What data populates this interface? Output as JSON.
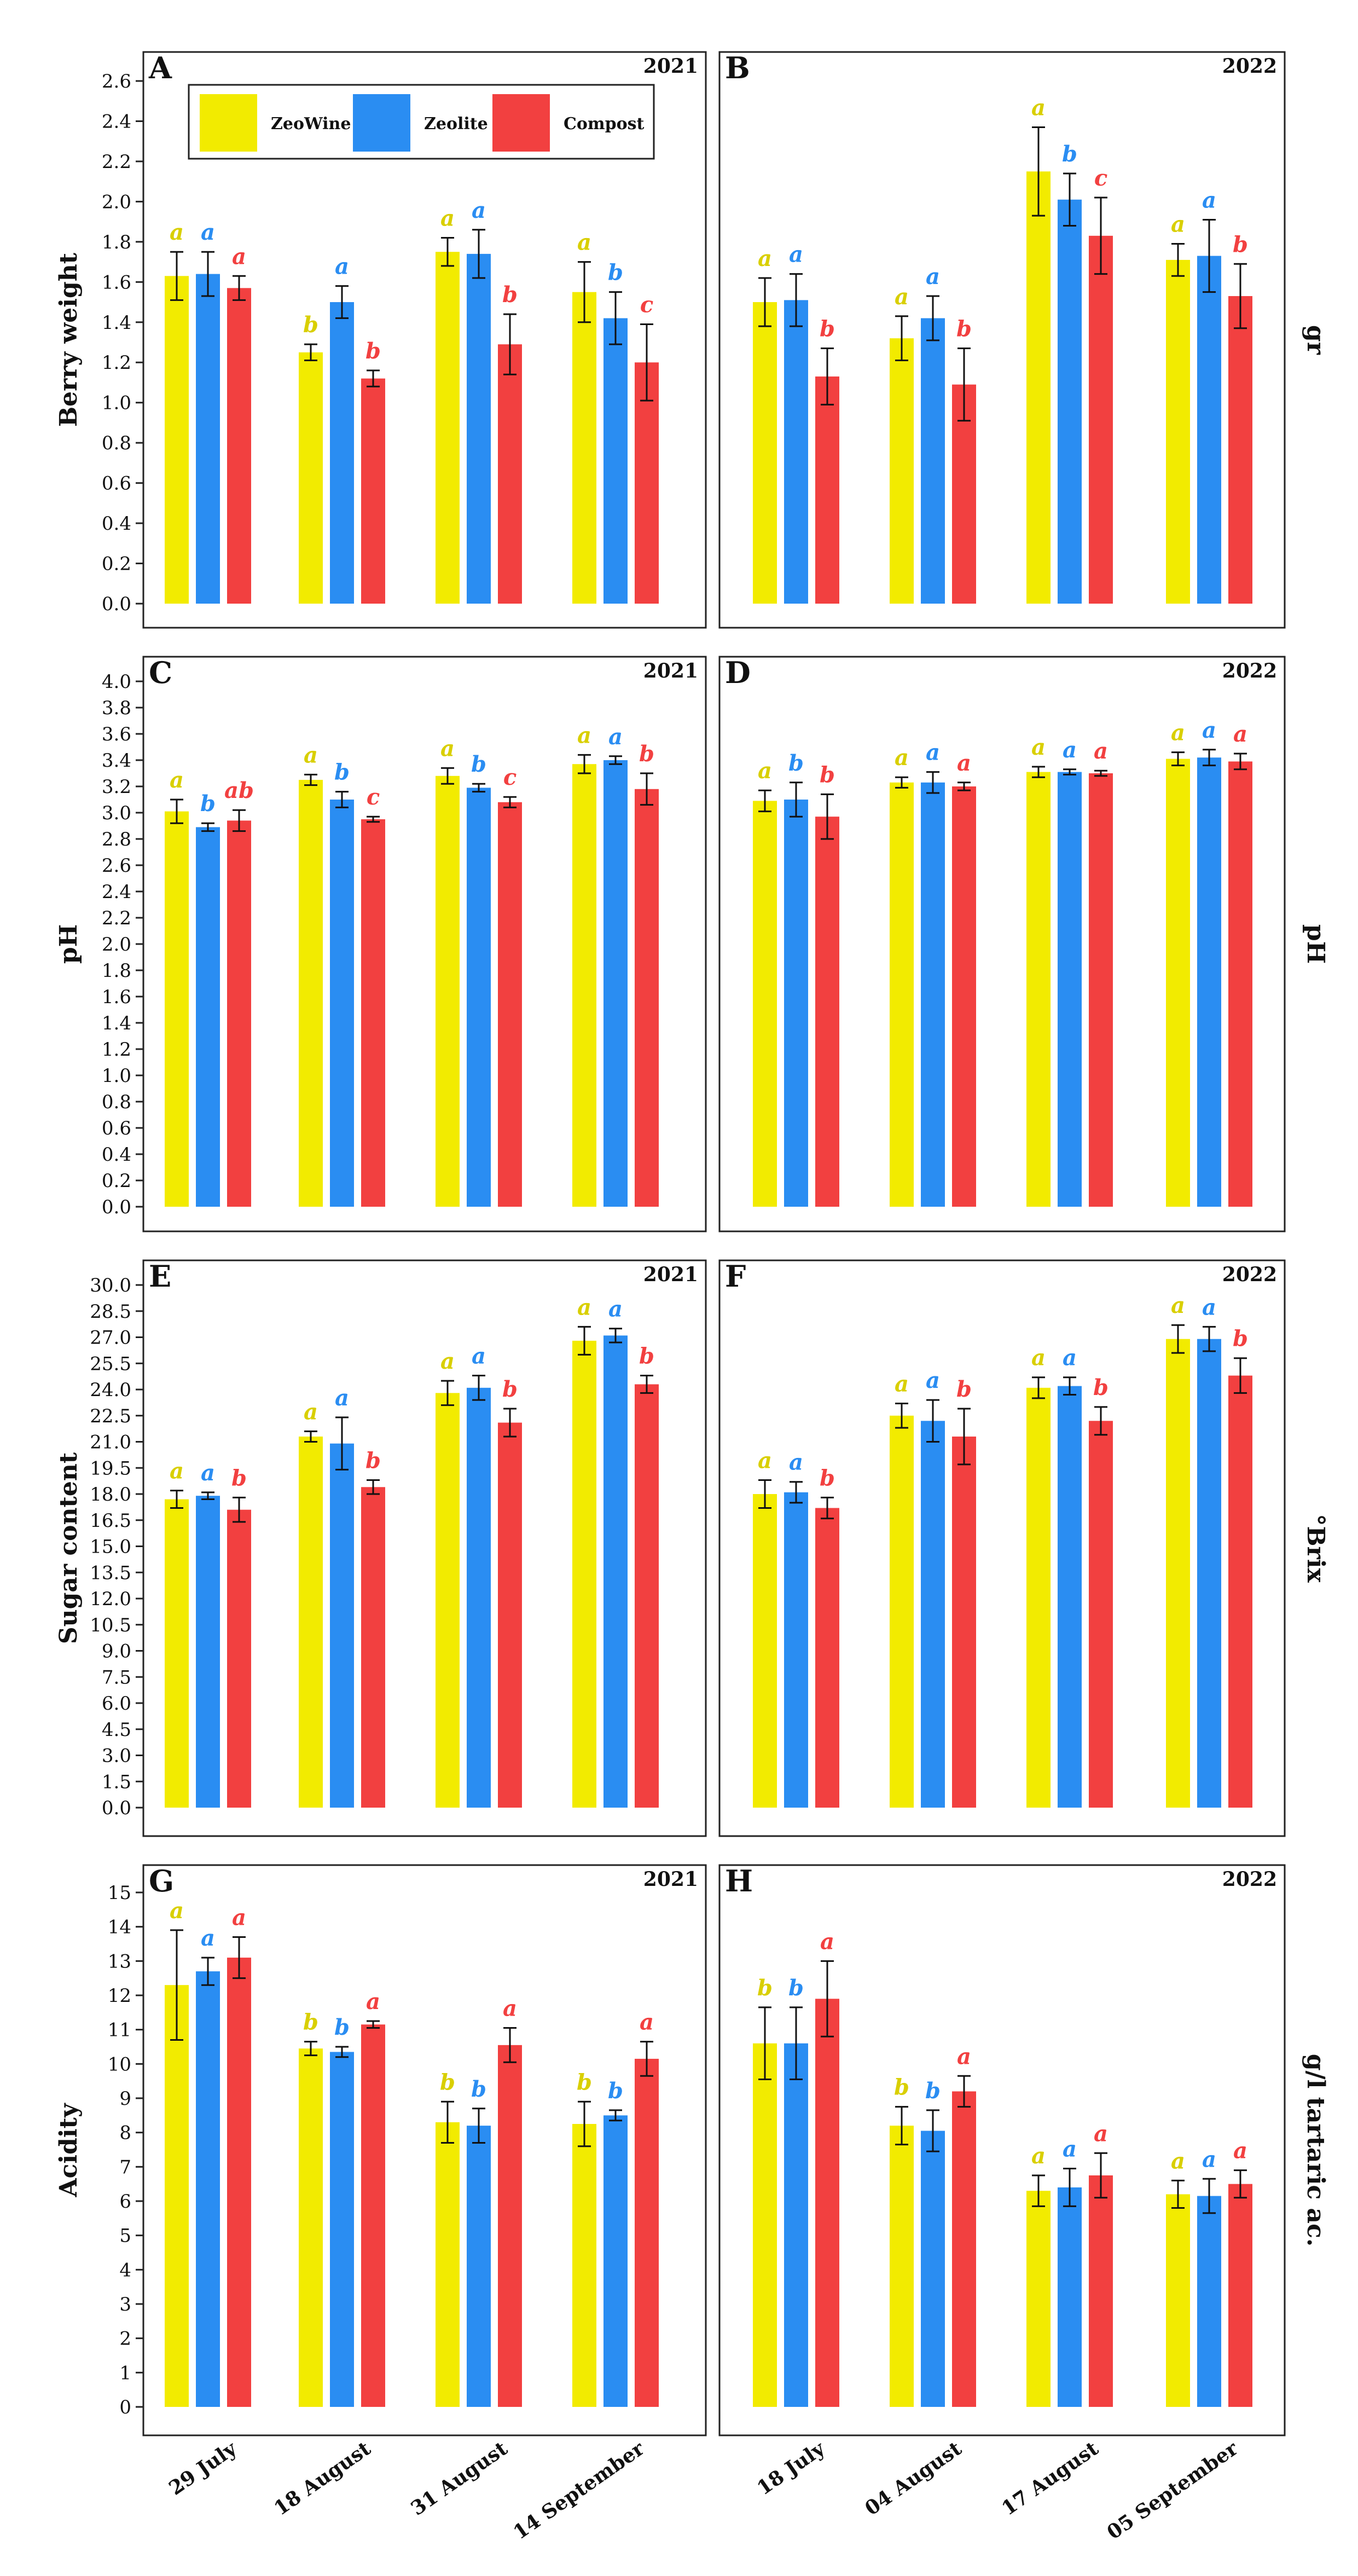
{
  "colors": {
    "ZeoWine": "#f2eb00",
    "Zeolite": "#2a8df2",
    "Compost": "#f24040"
  },
  "legend": [
    "ZeoWine",
    "Zeolite",
    "Compost"
  ],
  "years": [
    "2021",
    "2022"
  ],
  "x_labels": {
    "2021": [
      "29 July",
      "18 August",
      "31 August",
      "14 September"
    ],
    "2022": [
      "18 July",
      "04 August",
      "17 August",
      "05 September"
    ]
  },
  "rows": [
    {
      "left_label": "Berry weight",
      "right_label": "gr"
    },
    {
      "left_label": "pH",
      "right_label": "pH"
    },
    {
      "left_label": "Sugar content",
      "right_label": "°Brix"
    },
    {
      "left_label": "Acidity",
      "right_label": "g/l tartaric ac."
    }
  ],
  "chart_data": [
    {
      "type": "bar",
      "panel": "A",
      "year": "2021",
      "ylabel": "Berry weight",
      "ylim": [
        0,
        2.6
      ],
      "yticks": [
        "0.0",
        "0.2",
        "0.4",
        "0.6",
        "0.8",
        "1.0",
        "1.2",
        "1.4",
        "1.6",
        "1.8",
        "2.0",
        "2.2",
        "2.4",
        "2.6"
      ],
      "categories": [
        "29 July",
        "18 August",
        "31 August",
        "14 September"
      ],
      "series": [
        {
          "name": "ZeoWine",
          "values": [
            1.63,
            1.25,
            1.75,
            1.55
          ],
          "errors": [
            0.12,
            0.04,
            0.07,
            0.15
          ],
          "letters": [
            "a",
            "b",
            "a",
            "a"
          ]
        },
        {
          "name": "Zeolite",
          "values": [
            1.64,
            1.5,
            1.74,
            1.42
          ],
          "errors": [
            0.11,
            0.08,
            0.12,
            0.13
          ],
          "letters": [
            "a",
            "a",
            "a",
            "b"
          ]
        },
        {
          "name": "Compost",
          "values": [
            1.57,
            1.12,
            1.29,
            1.2
          ],
          "errors": [
            0.06,
            0.04,
            0.15,
            0.19
          ],
          "letters": [
            "a",
            "b",
            "b",
            "c"
          ]
        }
      ]
    },
    {
      "type": "bar",
      "panel": "B",
      "year": "2022",
      "ylabel": "gr",
      "ylim": [
        0,
        2.6
      ],
      "categories": [
        "18 July",
        "04 August",
        "17 August",
        "05 September"
      ],
      "series": [
        {
          "name": "ZeoWine",
          "values": [
            1.5,
            1.32,
            2.15,
            1.71
          ],
          "errors": [
            0.12,
            0.11,
            0.22,
            0.08
          ],
          "letters": [
            "a",
            "a",
            "a",
            "a"
          ]
        },
        {
          "name": "Zeolite",
          "values": [
            1.51,
            1.42,
            2.01,
            1.73
          ],
          "errors": [
            0.13,
            0.11,
            0.13,
            0.18
          ],
          "letters": [
            "a",
            "a",
            "b",
            "a"
          ]
        },
        {
          "name": "Compost",
          "values": [
            1.13,
            1.09,
            1.83,
            1.53
          ],
          "errors": [
            0.14,
            0.18,
            0.19,
            0.16
          ],
          "letters": [
            "b",
            "b",
            "c",
            "b"
          ]
        }
      ]
    },
    {
      "type": "bar",
      "panel": "C",
      "year": "2021",
      "ylabel": "pH",
      "ylim": [
        0,
        4.0
      ],
      "yticks": [
        "0.0",
        "0.2",
        "0.4",
        "0.6",
        "0.8",
        "1.0",
        "1.2",
        "1.4",
        "1.6",
        "1.8",
        "2.0",
        "2.2",
        "2.4",
        "2.6",
        "2.8",
        "3.0",
        "3.2",
        "3.4",
        "3.6",
        "3.8",
        "4.0"
      ],
      "categories": [
        "29 July",
        "18 August",
        "31 August",
        "14 September"
      ],
      "series": [
        {
          "name": "ZeoWine",
          "values": [
            3.01,
            3.25,
            3.28,
            3.37
          ],
          "errors": [
            0.09,
            0.04,
            0.06,
            0.07
          ],
          "letters": [
            "a",
            "a",
            "a",
            "a"
          ]
        },
        {
          "name": "Zeolite",
          "values": [
            2.89,
            3.1,
            3.19,
            3.4
          ],
          "errors": [
            0.03,
            0.06,
            0.03,
            0.03
          ],
          "letters": [
            "b",
            "b",
            "b",
            "a"
          ]
        },
        {
          "name": "Compost",
          "values": [
            2.94,
            2.95,
            3.08,
            3.18
          ],
          "errors": [
            0.08,
            0.02,
            0.04,
            0.12
          ],
          "letters": [
            "ab",
            "c",
            "c",
            "b"
          ]
        }
      ]
    },
    {
      "type": "bar",
      "panel": "D",
      "year": "2022",
      "ylabel": "pH",
      "ylim": [
        0,
        4.0
      ],
      "categories": [
        "18 July",
        "04 August",
        "17 August",
        "05 September"
      ],
      "series": [
        {
          "name": "ZeoWine",
          "values": [
            3.09,
            3.23,
            3.31,
            3.41
          ],
          "errors": [
            0.08,
            0.04,
            0.04,
            0.05
          ],
          "letters": [
            "a",
            "a",
            "a",
            "a"
          ]
        },
        {
          "name": "Zeolite",
          "values": [
            3.1,
            3.23,
            3.31,
            3.42
          ],
          "errors": [
            0.13,
            0.08,
            0.02,
            0.06
          ],
          "letters": [
            "b",
            "a",
            "a",
            "a"
          ]
        },
        {
          "name": "Compost",
          "values": [
            2.97,
            3.2,
            3.3,
            3.39
          ],
          "errors": [
            0.17,
            0.03,
            0.02,
            0.06
          ],
          "letters": [
            "b",
            "a",
            "a",
            "a"
          ]
        }
      ]
    },
    {
      "type": "bar",
      "panel": "E",
      "year": "2021",
      "ylabel": "Sugar content",
      "ylim": [
        0,
        30.0
      ],
      "yticks": [
        "0.0",
        "1.5",
        "3.0",
        "4.5",
        "6.0",
        "7.5",
        "9.0",
        "10.5",
        "12.0",
        "13.5",
        "15.0",
        "16.5",
        "18.0",
        "19.5",
        "21.0",
        "22.5",
        "24.0",
        "25.5",
        "27.0",
        "28.5",
        "30.0"
      ],
      "categories": [
        "29 July",
        "18 August",
        "31 August",
        "14 September"
      ],
      "series": [
        {
          "name": "ZeoWine",
          "values": [
            17.7,
            21.3,
            23.8,
            26.8
          ],
          "errors": [
            0.5,
            0.3,
            0.7,
            0.8
          ],
          "letters": [
            "a",
            "a",
            "a",
            "a"
          ]
        },
        {
          "name": "Zeolite",
          "values": [
            17.9,
            20.9,
            24.1,
            27.1
          ],
          "errors": [
            0.2,
            1.5,
            0.7,
            0.4
          ],
          "letters": [
            "a",
            "a",
            "a",
            "a"
          ]
        },
        {
          "name": "Compost",
          "values": [
            17.1,
            18.4,
            22.1,
            24.3
          ],
          "errors": [
            0.7,
            0.4,
            0.8,
            0.5
          ],
          "letters": [
            "b",
            "b",
            "b",
            "b"
          ]
        }
      ]
    },
    {
      "type": "bar",
      "panel": "F",
      "year": "2022",
      "ylabel": "°Brix",
      "ylim": [
        0,
        30.0
      ],
      "categories": [
        "18 July",
        "04 August",
        "17 August",
        "05 September"
      ],
      "series": [
        {
          "name": "ZeoWine",
          "values": [
            18.0,
            22.5,
            24.1,
            26.9
          ],
          "errors": [
            0.8,
            0.7,
            0.6,
            0.8
          ],
          "letters": [
            "a",
            "a",
            "a",
            "a"
          ]
        },
        {
          "name": "Zeolite",
          "values": [
            18.1,
            22.2,
            24.2,
            26.9
          ],
          "errors": [
            0.6,
            1.2,
            0.5,
            0.7
          ],
          "letters": [
            "a",
            "a",
            "a",
            "a"
          ]
        },
        {
          "name": "Compost",
          "values": [
            17.2,
            21.3,
            22.2,
            24.8
          ],
          "errors": [
            0.6,
            1.6,
            0.8,
            1.0
          ],
          "letters": [
            "b",
            "b",
            "b",
            "b"
          ]
        }
      ]
    },
    {
      "type": "bar",
      "panel": "G",
      "year": "2021",
      "ylabel": "Acidity",
      "ylim": [
        0,
        15
      ],
      "yticks": [
        "0",
        "1",
        "2",
        "3",
        "4",
        "5",
        "6",
        "7",
        "8",
        "9",
        "10",
        "11",
        "12",
        "13",
        "14",
        "15"
      ],
      "categories": [
        "29 July",
        "18 August",
        "31 August",
        "14 September"
      ],
      "series": [
        {
          "name": "ZeoWine",
          "values": [
            12.3,
            10.45,
            8.3,
            8.25
          ],
          "errors": [
            1.6,
            0.2,
            0.6,
            0.65
          ],
          "letters": [
            "a",
            "b",
            "b",
            "b"
          ]
        },
        {
          "name": "Zeolite",
          "values": [
            12.7,
            10.35,
            8.2,
            8.5
          ],
          "errors": [
            0.4,
            0.15,
            0.5,
            0.15
          ],
          "letters": [
            "a",
            "b",
            "b",
            "b"
          ]
        },
        {
          "name": "Compost",
          "values": [
            13.1,
            11.15,
            10.55,
            10.15
          ],
          "errors": [
            0.6,
            0.1,
            0.5,
            0.5
          ],
          "letters": [
            "a",
            "a",
            "a",
            "a"
          ]
        }
      ]
    },
    {
      "type": "bar",
      "panel": "H",
      "year": "2022",
      "ylabel": "g/l tartaric ac.",
      "ylim": [
        0,
        15
      ],
      "categories": [
        "18 July",
        "04 August",
        "17 August",
        "05 September"
      ],
      "series": [
        {
          "name": "ZeoWine",
          "values": [
            10.6,
            8.2,
            6.3,
            6.2
          ],
          "errors": [
            1.05,
            0.55,
            0.45,
            0.4
          ],
          "letters": [
            "b",
            "b",
            "a",
            "a"
          ]
        },
        {
          "name": "Zeolite",
          "values": [
            10.6,
            8.05,
            6.4,
            6.15
          ],
          "errors": [
            1.05,
            0.6,
            0.55,
            0.5
          ],
          "letters": [
            "b",
            "b",
            "a",
            "a"
          ]
        },
        {
          "name": "Compost",
          "values": [
            11.9,
            9.2,
            6.75,
            6.5
          ],
          "errors": [
            1.1,
            0.45,
            0.65,
            0.4
          ],
          "letters": [
            "a",
            "a",
            "a",
            "a"
          ]
        }
      ]
    }
  ]
}
